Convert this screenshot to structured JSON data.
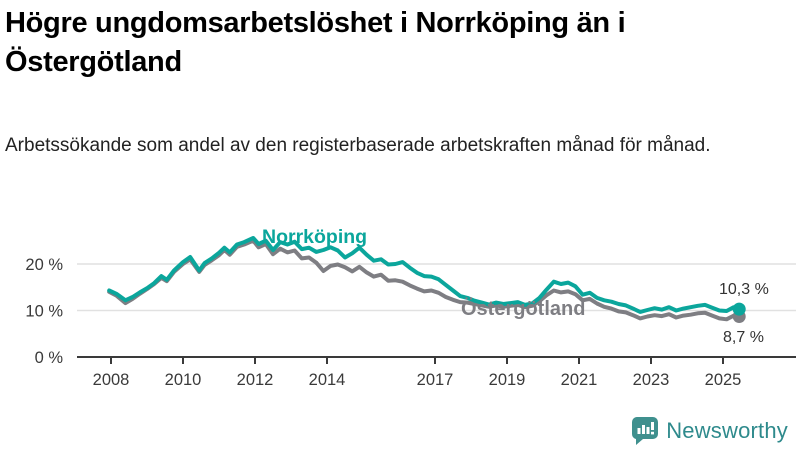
{
  "chart_data": {
    "type": "line",
    "title": "Högre ungdomsarbetslöshet i Norrköping än i Östergötland",
    "subtitle": "Arbetssökande som andel av den registerbaserade arbetskraften månad för månad.",
    "unit": "%",
    "xlim": [
      2007.8,
      2026.0
    ],
    "ylim": [
      0,
      28
    ],
    "grid": true,
    "legend_position": "inline-labels",
    "xtick_values": [
      2008,
      2010,
      2012,
      2014,
      2017,
      2019,
      2021,
      2023,
      2025
    ],
    "xtick_labels": [
      "2008",
      "2010",
      "2012",
      "2014",
      "2017",
      "2019",
      "2021",
      "2023",
      "2025"
    ],
    "ytick_values": [
      0,
      10,
      20
    ],
    "ytick_labels": [
      "0 %",
      "10 %",
      "20 %"
    ],
    "x": [
      2007.95,
      2008.15,
      2008.4,
      2008.6,
      2008.8,
      2009.0,
      2009.2,
      2009.4,
      2009.55,
      2009.75,
      2010.0,
      2010.2,
      2010.45,
      2010.6,
      2010.8,
      2011.0,
      2011.15,
      2011.3,
      2011.5,
      2011.7,
      2011.95,
      2012.1,
      2012.3,
      2012.5,
      2012.7,
      2012.9,
      2013.1,
      2013.3,
      2013.5,
      2013.7,
      2013.9,
      2014.1,
      2014.3,
      2014.5,
      2014.7,
      2014.9,
      2015.1,
      2015.3,
      2015.5,
      2015.7,
      2015.9,
      2016.1,
      2016.3,
      2016.5,
      2016.7,
      2016.9,
      2017.1,
      2017.3,
      2017.5,
      2017.7,
      2017.9,
      2018.1,
      2018.3,
      2018.5,
      2018.7,
      2018.9,
      2019.1,
      2019.3,
      2019.5,
      2019.7,
      2019.9,
      2020.1,
      2020.3,
      2020.5,
      2020.7,
      2020.9,
      2021.1,
      2021.3,
      2021.5,
      2021.7,
      2021.9,
      2022.1,
      2022.3,
      2022.5,
      2022.7,
      2022.9,
      2023.1,
      2023.3,
      2023.5,
      2023.7,
      2023.9,
      2024.1,
      2024.3,
      2024.5,
      2024.7,
      2024.9,
      2025.1,
      2025.3,
      2025.45
    ],
    "series": [
      {
        "key": "norrkoping",
        "name": "Norrköping",
        "color": "#0ba69c",
        "end_label": "10,3 %",
        "end_value": 10.3,
        "values": [
          14.3,
          13.6,
          12.2,
          12.9,
          13.9,
          14.8,
          15.9,
          17.4,
          16.6,
          18.6,
          20.4,
          21.5,
          18.6,
          20.2,
          21.2,
          22.4,
          23.5,
          22.5,
          24.2,
          24.7,
          25.6,
          24.3,
          25.0,
          23.0,
          24.7,
          24.2,
          24.8,
          23.2,
          23.5,
          22.6,
          23.0,
          23.6,
          22.9,
          21.4,
          22.3,
          23.5,
          22.0,
          20.7,
          21.0,
          19.9,
          20.0,
          20.4,
          19.2,
          18.1,
          17.4,
          17.3,
          16.7,
          15.5,
          14.3,
          13.1,
          12.7,
          12.1,
          11.7,
          11.3,
          11.7,
          11.4,
          11.6,
          11.8,
          11.2,
          11.5,
          12.7,
          14.5,
          16.2,
          15.7,
          16.0,
          15.2,
          13.4,
          13.8,
          12.7,
          12.2,
          11.9,
          11.4,
          11.1,
          10.4,
          9.7,
          10.1,
          10.5,
          10.2,
          10.7,
          10.0,
          10.4,
          10.7,
          11.0,
          11.2,
          10.6,
          10.0,
          9.9,
          10.7,
          10.3
        ]
      },
      {
        "key": "ostergotland",
        "name": "Östergötland",
        "color": "#7e7e83",
        "end_label": "8,7 %",
        "end_value": 8.7,
        "values": [
          14.0,
          13.2,
          11.6,
          12.5,
          13.6,
          14.6,
          15.7,
          17.0,
          16.3,
          18.3,
          20.0,
          21.0,
          18.3,
          19.8,
          20.8,
          21.9,
          23.0,
          22.0,
          23.7,
          24.2,
          25.0,
          23.6,
          24.3,
          22.1,
          23.3,
          22.5,
          22.9,
          21.2,
          21.4,
          20.3,
          18.5,
          19.6,
          19.9,
          19.3,
          18.4,
          19.4,
          18.2,
          17.3,
          17.7,
          16.4,
          16.5,
          16.2,
          15.4,
          14.7,
          14.1,
          14.3,
          13.8,
          12.9,
          12.3,
          11.8,
          11.7,
          11.4,
          11.1,
          10.8,
          11.1,
          10.8,
          11.0,
          11.2,
          10.7,
          11.0,
          12.0,
          13.3,
          14.3,
          13.9,
          14.1,
          13.5,
          12.2,
          12.5,
          11.5,
          10.8,
          10.4,
          9.8,
          9.6,
          9.0,
          8.3,
          8.7,
          9.0,
          8.8,
          9.2,
          8.5,
          8.9,
          9.1,
          9.4,
          9.5,
          8.9,
          8.3,
          8.1,
          8.9,
          8.7
        ]
      }
    ],
    "colors": {
      "axis": "#3a3a3a",
      "gridline": "#e1e1e1",
      "tick_label": "#3a3a3a"
    }
  },
  "footer": {
    "brand": "Newsworthy",
    "brand_color": "#2e8a8c",
    "icon_color": "#3f908e"
  }
}
